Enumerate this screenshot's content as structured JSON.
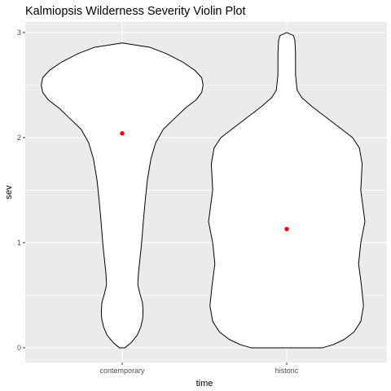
{
  "chart_data": {
    "type": "violin",
    "title": "Kalmiopsis Wilderness Severity Violin Plot",
    "xlabel": "time",
    "ylabel": "sev",
    "ylim": [
      -0.14,
      3.1
    ],
    "yticks": [
      0,
      1,
      2,
      3
    ],
    "grid": true,
    "legend": "none",
    "colors": {
      "panel": "#ebebeb",
      "grid": "#ffffff",
      "violin_fill": "#ffffff",
      "violin_stroke": "#000000",
      "mean_point": "#ff0000",
      "tick_text": "#4d4d4d"
    },
    "categories": [
      "contemporary",
      "historic"
    ],
    "violins": [
      {
        "category": "contemporary",
        "mean": 2.04,
        "profile": [
          [
            0.0,
            0.1
          ],
          [
            0.05,
            0.33
          ],
          [
            0.12,
            0.55
          ],
          [
            0.2,
            0.68
          ],
          [
            0.28,
            0.75
          ],
          [
            0.35,
            0.76
          ],
          [
            0.43,
            0.74
          ],
          [
            0.52,
            0.64
          ],
          [
            0.6,
            0.57
          ],
          [
            0.7,
            0.59
          ],
          [
            0.85,
            0.65
          ],
          [
            1.0,
            0.71
          ],
          [
            1.2,
            0.77
          ],
          [
            1.4,
            0.84
          ],
          [
            1.6,
            0.92
          ],
          [
            1.8,
            1.05
          ],
          [
            1.95,
            1.22
          ],
          [
            2.08,
            1.5
          ],
          [
            2.18,
            1.9
          ],
          [
            2.28,
            2.3
          ],
          [
            2.36,
            2.7
          ],
          [
            2.43,
            2.9
          ],
          [
            2.5,
            2.95
          ],
          [
            2.57,
            2.9
          ],
          [
            2.64,
            2.65
          ],
          [
            2.72,
            2.2
          ],
          [
            2.8,
            1.6
          ],
          [
            2.86,
            1.0
          ],
          [
            2.9,
            0.0
          ]
        ]
      },
      {
        "category": "historic",
        "mean": 1.13,
        "profile": [
          [
            0.0,
            1.3
          ],
          [
            0.03,
            1.7
          ],
          [
            0.08,
            2.1
          ],
          [
            0.15,
            2.45
          ],
          [
            0.25,
            2.7
          ],
          [
            0.4,
            2.8
          ],
          [
            0.6,
            2.72
          ],
          [
            0.8,
            2.62
          ],
          [
            1.0,
            2.7
          ],
          [
            1.2,
            2.85
          ],
          [
            1.4,
            2.75
          ],
          [
            1.5,
            2.7
          ],
          [
            1.6,
            2.72
          ],
          [
            1.75,
            2.75
          ],
          [
            1.9,
            2.65
          ],
          [
            2.0,
            2.4
          ],
          [
            2.1,
            1.9
          ],
          [
            2.2,
            1.4
          ],
          [
            2.3,
            0.9
          ],
          [
            2.38,
            0.55
          ],
          [
            2.45,
            0.38
          ],
          [
            2.6,
            0.32
          ],
          [
            2.8,
            0.32
          ],
          [
            2.92,
            0.3
          ],
          [
            2.97,
            0.25
          ],
          [
            3.0,
            0.0
          ]
        ]
      }
    ]
  }
}
